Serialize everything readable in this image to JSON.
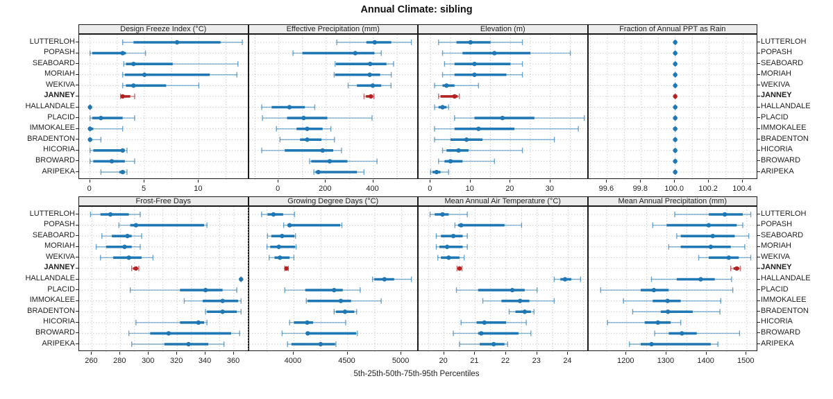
{
  "title": "Annual Climate: sibling",
  "caption": "5th-25th-50th-75th-95th Percentiles",
  "colors": {
    "series": "#1f77b4",
    "highlight": "#b22222",
    "grid": "#cccccc",
    "header_bg": "#ececec",
    "frame": "#1a1a1a"
  },
  "chart_data": {
    "type": "scatter",
    "subtype": "dot-interval percentile plot (5th-25th-50th-75th-95th)",
    "legend_position": "none",
    "grid": "dotted",
    "highlight": "JANNEY",
    "stations": [
      "LUTTERLOH",
      "POPASH",
      "SEABOARD",
      "MORIAH",
      "WEKIVA",
      "JANNEY",
      "HALLANDALE",
      "PLACID",
      "IMMOKALEE",
      "BRADENTON",
      "HICORIA",
      "BROWARD",
      "ARIPEKA"
    ],
    "panels": [
      {
        "title": "Design Freeze Index (°C)",
        "row": 0,
        "col": 0,
        "xlim": [
          -1.0,
          14.6
        ],
        "ticks": [
          0,
          5,
          10
        ],
        "tick_labels": [
          "0",
          "5",
          "10"
        ],
        "grid_step": 2.5,
        "values": {
          "LUTTERLOH": [
            3,
            4,
            8,
            12,
            14
          ],
          "POPASH": [
            0,
            0.2,
            3,
            3.3,
            5.1
          ],
          "SEABOARD": [
            3.1,
            3.3,
            4,
            7.6,
            13.6
          ],
          "MORIAH": [
            3,
            3.2,
            5,
            11,
            13.5
          ],
          "WEKIVA": [
            3,
            3.3,
            4,
            7,
            10
          ],
          "JANNEY": [
            2.8,
            2.9,
            3,
            3.7,
            4.1
          ],
          "HALLANDALE": [
            0,
            0,
            0,
            0,
            0
          ],
          "PLACID": [
            0,
            0.2,
            1,
            3,
            4.1
          ],
          "IMMOKALEE": [
            0,
            0,
            0,
            0.3,
            3
          ],
          "BRADENTON": [
            0,
            0,
            0,
            0.2,
            1
          ],
          "HICORIA": [
            0,
            0.3,
            3,
            3.2,
            3.4
          ],
          "BROWARD": [
            0,
            0.3,
            2,
            3.2,
            4.1
          ],
          "ARIPEKA": [
            1,
            2.7,
            3,
            3.2,
            3.4
          ]
        }
      },
      {
        "title": "Effective Precipitation (mm)",
        "row": 0,
        "col": 1,
        "xlim": [
          -125,
          592
        ],
        "ticks": [
          0,
          200,
          400
        ],
        "tick_labels": [
          "0",
          "200",
          "400"
        ],
        "grid_step": 100,
        "values": {
          "LUTTERLOH": [
            245,
            370,
            405,
            475,
            560
          ],
          "POPASH": [
            60,
            100,
            323,
            404,
            433
          ],
          "SEABOARD": [
            238,
            242,
            386,
            455,
            485
          ],
          "MORIAH": [
            234,
            238,
            384,
            428,
            475
          ],
          "WEKIVA": [
            293,
            330,
            397,
            433,
            474
          ],
          "JANNEY": [
            360,
            368,
            389,
            398,
            402
          ],
          "HALLANDALE": [
            -72,
            -30,
            45,
            110,
            152
          ],
          "PLACID": [
            -69,
            35,
            105,
            205,
            394
          ],
          "IMMOKALEE": [
            -10,
            75,
            120,
            185,
            220
          ],
          "BRADENTON": [
            5,
            90,
            120,
            180,
            235
          ],
          "HICORIA": [
            -72,
            25,
            185,
            230,
            265
          ],
          "BROWARD": [
            130,
            137,
            215,
            290,
            415
          ],
          "ARIPEKA": [
            148,
            155,
            167,
            330,
            360
          ]
        }
      },
      {
        "title": "Elevation (m)",
        "row": 0,
        "col": 2,
        "xlim": [
          -3,
          39.5
        ],
        "ticks": [
          0,
          10,
          20,
          30
        ],
        "tick_labels": [
          "0",
          "10",
          "20",
          "30"
        ],
        "grid_step": 5,
        "values": {
          "LUTTERLOH": [
            2,
            6.5,
            10,
            15,
            23
          ],
          "POPASH": [
            3,
            8,
            16,
            25,
            35
          ],
          "SEABOARD": [
            3.5,
            6,
            11,
            20,
            23
          ],
          "MORIAH": [
            3,
            6,
            11,
            19,
            23
          ],
          "WEKIVA": [
            1,
            3,
            4,
            6,
            12
          ],
          "JANNEY": [
            2,
            2.5,
            6,
            6.8,
            7.2
          ],
          "HALLANDALE": [
            1,
            2,
            3,
            4,
            4.5
          ],
          "PLACID": [
            6,
            11,
            18,
            26,
            38.5
          ],
          "IMMOKALEE": [
            1,
            6,
            12,
            21,
            37
          ],
          "BRADENTON": [
            1,
            5,
            9,
            13,
            31
          ],
          "HICORIA": [
            3,
            4,
            7,
            9.5,
            23
          ],
          "BROWARD": [
            2,
            3.5,
            5,
            8,
            16
          ],
          "ARIPEKA": [
            0,
            0.5,
            1.5,
            2.5,
            4.5
          ]
        }
      },
      {
        "title": "Fraction of Annual PPT as Rain",
        "row": 0,
        "col": 3,
        "xlim": [
          99.49,
          100.49
        ],
        "ticks": [
          99.6,
          99.8,
          100.0,
          100.2,
          100.4
        ],
        "tick_labels": [
          "99.6",
          "99.8",
          "100.0",
          "100.2",
          "100.4"
        ],
        "grid_step": 0.1,
        "values": {
          "LUTTERLOH": [
            100,
            100,
            100,
            100,
            100
          ],
          "POPASH": [
            100,
            100,
            100,
            100,
            100
          ],
          "SEABOARD": [
            100,
            100,
            100,
            100,
            100
          ],
          "MORIAH": [
            100,
            100,
            100,
            100,
            100
          ],
          "WEKIVA": [
            100,
            100,
            100,
            100,
            100
          ],
          "JANNEY": [
            100,
            100,
            100,
            100,
            100
          ],
          "HALLANDALE": [
            100,
            100,
            100,
            100,
            100
          ],
          "PLACID": [
            100,
            100,
            100,
            100,
            100
          ],
          "IMMOKALEE": [
            100,
            100,
            100,
            100,
            100
          ],
          "BRADENTON": [
            100,
            100,
            100,
            100,
            100
          ],
          "HICORIA": [
            100,
            100,
            100,
            100,
            100
          ],
          "BROWARD": [
            100,
            100,
            100,
            100,
            100
          ],
          "ARIPEKA": [
            100,
            100,
            100,
            100,
            100
          ]
        }
      },
      {
        "title": "Frost-Free Days",
        "row": 1,
        "col": 0,
        "xlim": [
          251,
          370.5
        ],
        "ticks": [
          260,
          280,
          300,
          320,
          340,
          360
        ],
        "tick_labels": [
          "260",
          "280",
          "300",
          "320",
          "340",
          "360"
        ],
        "grid_step": 10,
        "values": {
          "LUTTERLOH": [
            259,
            266,
            273,
            286,
            294
          ],
          "POPASH": [
            279,
            287,
            291,
            339,
            341
          ],
          "SEABOARD": [
            267,
            274,
            285,
            288,
            295
          ],
          "MORIAH": [
            263,
            270,
            283,
            288,
            294
          ],
          "WEKIVA": [
            266,
            275,
            286,
            295,
            303
          ],
          "JANNEY": [
            288,
            289,
            291,
            292,
            293
          ],
          "HALLANDALE": [
            365,
            365,
            365,
            365,
            365
          ],
          "PLACID": [
            287,
            322,
            340,
            352,
            362
          ],
          "IMMOKALEE": [
            325,
            338,
            352,
            363,
            365
          ],
          "BRADENTON": [
            340,
            341,
            352,
            362,
            365
          ],
          "HICORIA": [
            291,
            322,
            335,
            339,
            341
          ],
          "BROWARD": [
            286,
            301,
            314,
            358,
            364
          ],
          "ARIPEKA": [
            288,
            311,
            328,
            342,
            353
          ]
        }
      },
      {
        "title": "Growing Degree Days (°C)",
        "row": 1,
        "col": 1,
        "xlim": [
          3585,
          5160
        ],
        "ticks": [
          4000,
          4500,
          5000
        ],
        "tick_labels": [
          "4000",
          "4500",
          "5000"
        ],
        "grid_step": 250,
        "values": {
          "LUTTERLOH": [
            3700,
            3755,
            3810,
            3900,
            4005
          ],
          "POPASH": [
            3905,
            3940,
            3960,
            4430,
            4445
          ],
          "SEABOARD": [
            3755,
            3790,
            3890,
            4005,
            4015
          ],
          "MORIAH": [
            3750,
            3780,
            3860,
            4010,
            4020
          ],
          "WEKIVA": [
            3770,
            3820,
            3870,
            3960,
            4000
          ],
          "JANNEY": [
            3915,
            3922,
            3930,
            3940,
            3948
          ],
          "HALLANDALE": [
            4730,
            4745,
            4840,
            4930,
            5090
          ],
          "PLACID": [
            3915,
            4105,
            4373,
            4453,
            4615
          ],
          "IMMOKALEE": [
            4115,
            4125,
            4435,
            4530,
            4810
          ],
          "BRADENTON": [
            4373,
            4390,
            4474,
            4560,
            4582
          ],
          "HICORIA": [
            3960,
            4000,
            4123,
            4178,
            4480
          ],
          "BROWARD": [
            3890,
            4118,
            4128,
            4577,
            4588
          ],
          "ARIPEKA": [
            3940,
            3977,
            4248,
            4382,
            4390
          ]
        }
      },
      {
        "title": "Mean Annual Air Temperature (°C)",
        "row": 1,
        "col": 2,
        "xlim": [
          19.18,
          24.65
        ],
        "ticks": [
          20,
          21,
          22,
          23,
          24
        ],
        "tick_labels": [
          "20",
          "21",
          "22",
          "23",
          "24"
        ],
        "grid_step": 0.5,
        "values": {
          "LUTTERLOH": [
            19.55,
            19.7,
            19.95,
            20.15,
            20.75
          ],
          "POPASH": [
            20.35,
            20.45,
            20.55,
            21.95,
            22.5
          ],
          "SEABOARD": [
            19.75,
            19.9,
            20.3,
            20.6,
            20.75
          ],
          "MORIAH": [
            19.75,
            19.85,
            20.1,
            20.6,
            20.75
          ],
          "WEKIVA": [
            19.8,
            19.9,
            20.15,
            20.5,
            20.65
          ],
          "JANNEY": [
            20.42,
            20.45,
            20.5,
            20.55,
            20.58
          ],
          "HALLANDALE": [
            23.55,
            23.75,
            23.9,
            24.1,
            24.4
          ],
          "PLACID": [
            20.4,
            21.1,
            22.2,
            22.6,
            23.0
          ],
          "IMMOKALEE": [
            21.25,
            21.85,
            22.45,
            22.75,
            23.55
          ],
          "BRADENTON": [
            22.1,
            22.3,
            22.6,
            22.8,
            22.9
          ],
          "HICORIA": [
            20.55,
            21.05,
            21.3,
            22.0,
            22.65
          ],
          "BROWARD": [
            20.3,
            21.1,
            21.2,
            22.4,
            22.8
          ],
          "ARIPEKA": [
            20.5,
            21.15,
            21.6,
            21.95,
            22.05
          ]
        }
      },
      {
        "title": "Mean Annual Precipitation (mm)",
        "row": 1,
        "col": 3,
        "xlim": [
          1105,
          1529
        ],
        "ticks": [
          1200,
          1300,
          1400,
          1500
        ],
        "tick_labels": [
          "1200",
          "1300",
          "1400",
          "1500"
        ],
        "grid_step": 50,
        "values": {
          "LUTTERLOH": [
            1320,
            1405,
            1445,
            1490,
            1510
          ],
          "POPASH": [
            1265,
            1300,
            1405,
            1475,
            1490
          ],
          "SEABOARD": [
            1325,
            1335,
            1415,
            1470,
            1505
          ],
          "MORIAH": [
            1305,
            1335,
            1410,
            1460,
            1495
          ],
          "WEKIVA": [
            1380,
            1405,
            1455,
            1480,
            1510
          ],
          "JANNEY": [
            1460,
            1467,
            1475,
            1481,
            1484
          ],
          "HALLANDALE": [
            1262,
            1325,
            1385,
            1420,
            1462
          ],
          "PLACID": [
            1135,
            1235,
            1268,
            1305,
            1465
          ],
          "IMMOKALEE": [
            1192,
            1265,
            1302,
            1335,
            1435
          ],
          "BRADENTON": [
            1215,
            1285,
            1303,
            1365,
            1433
          ],
          "HICORIA": [
            1152,
            1245,
            1278,
            1310,
            1335
          ],
          "BROWARD": [
            1270,
            1305,
            1338,
            1375,
            1482
          ],
          "ARIPEKA": [
            1207,
            1235,
            1262,
            1410,
            1428
          ]
        }
      }
    ]
  }
}
